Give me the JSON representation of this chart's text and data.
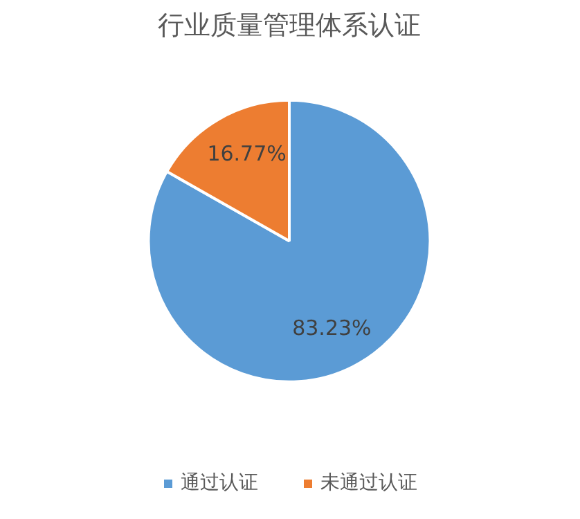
{
  "chart_data": {
    "type": "pie",
    "title": "行业质量管理体系认证",
    "categories": [
      "通过认证",
      "未通过认证"
    ],
    "values": [
      83.23,
      16.77
    ],
    "colors": [
      "#5b9bd5",
      "#ed7d31"
    ],
    "value_labels": [
      "83.23%",
      "16.77%"
    ],
    "legend": "bottom"
  }
}
